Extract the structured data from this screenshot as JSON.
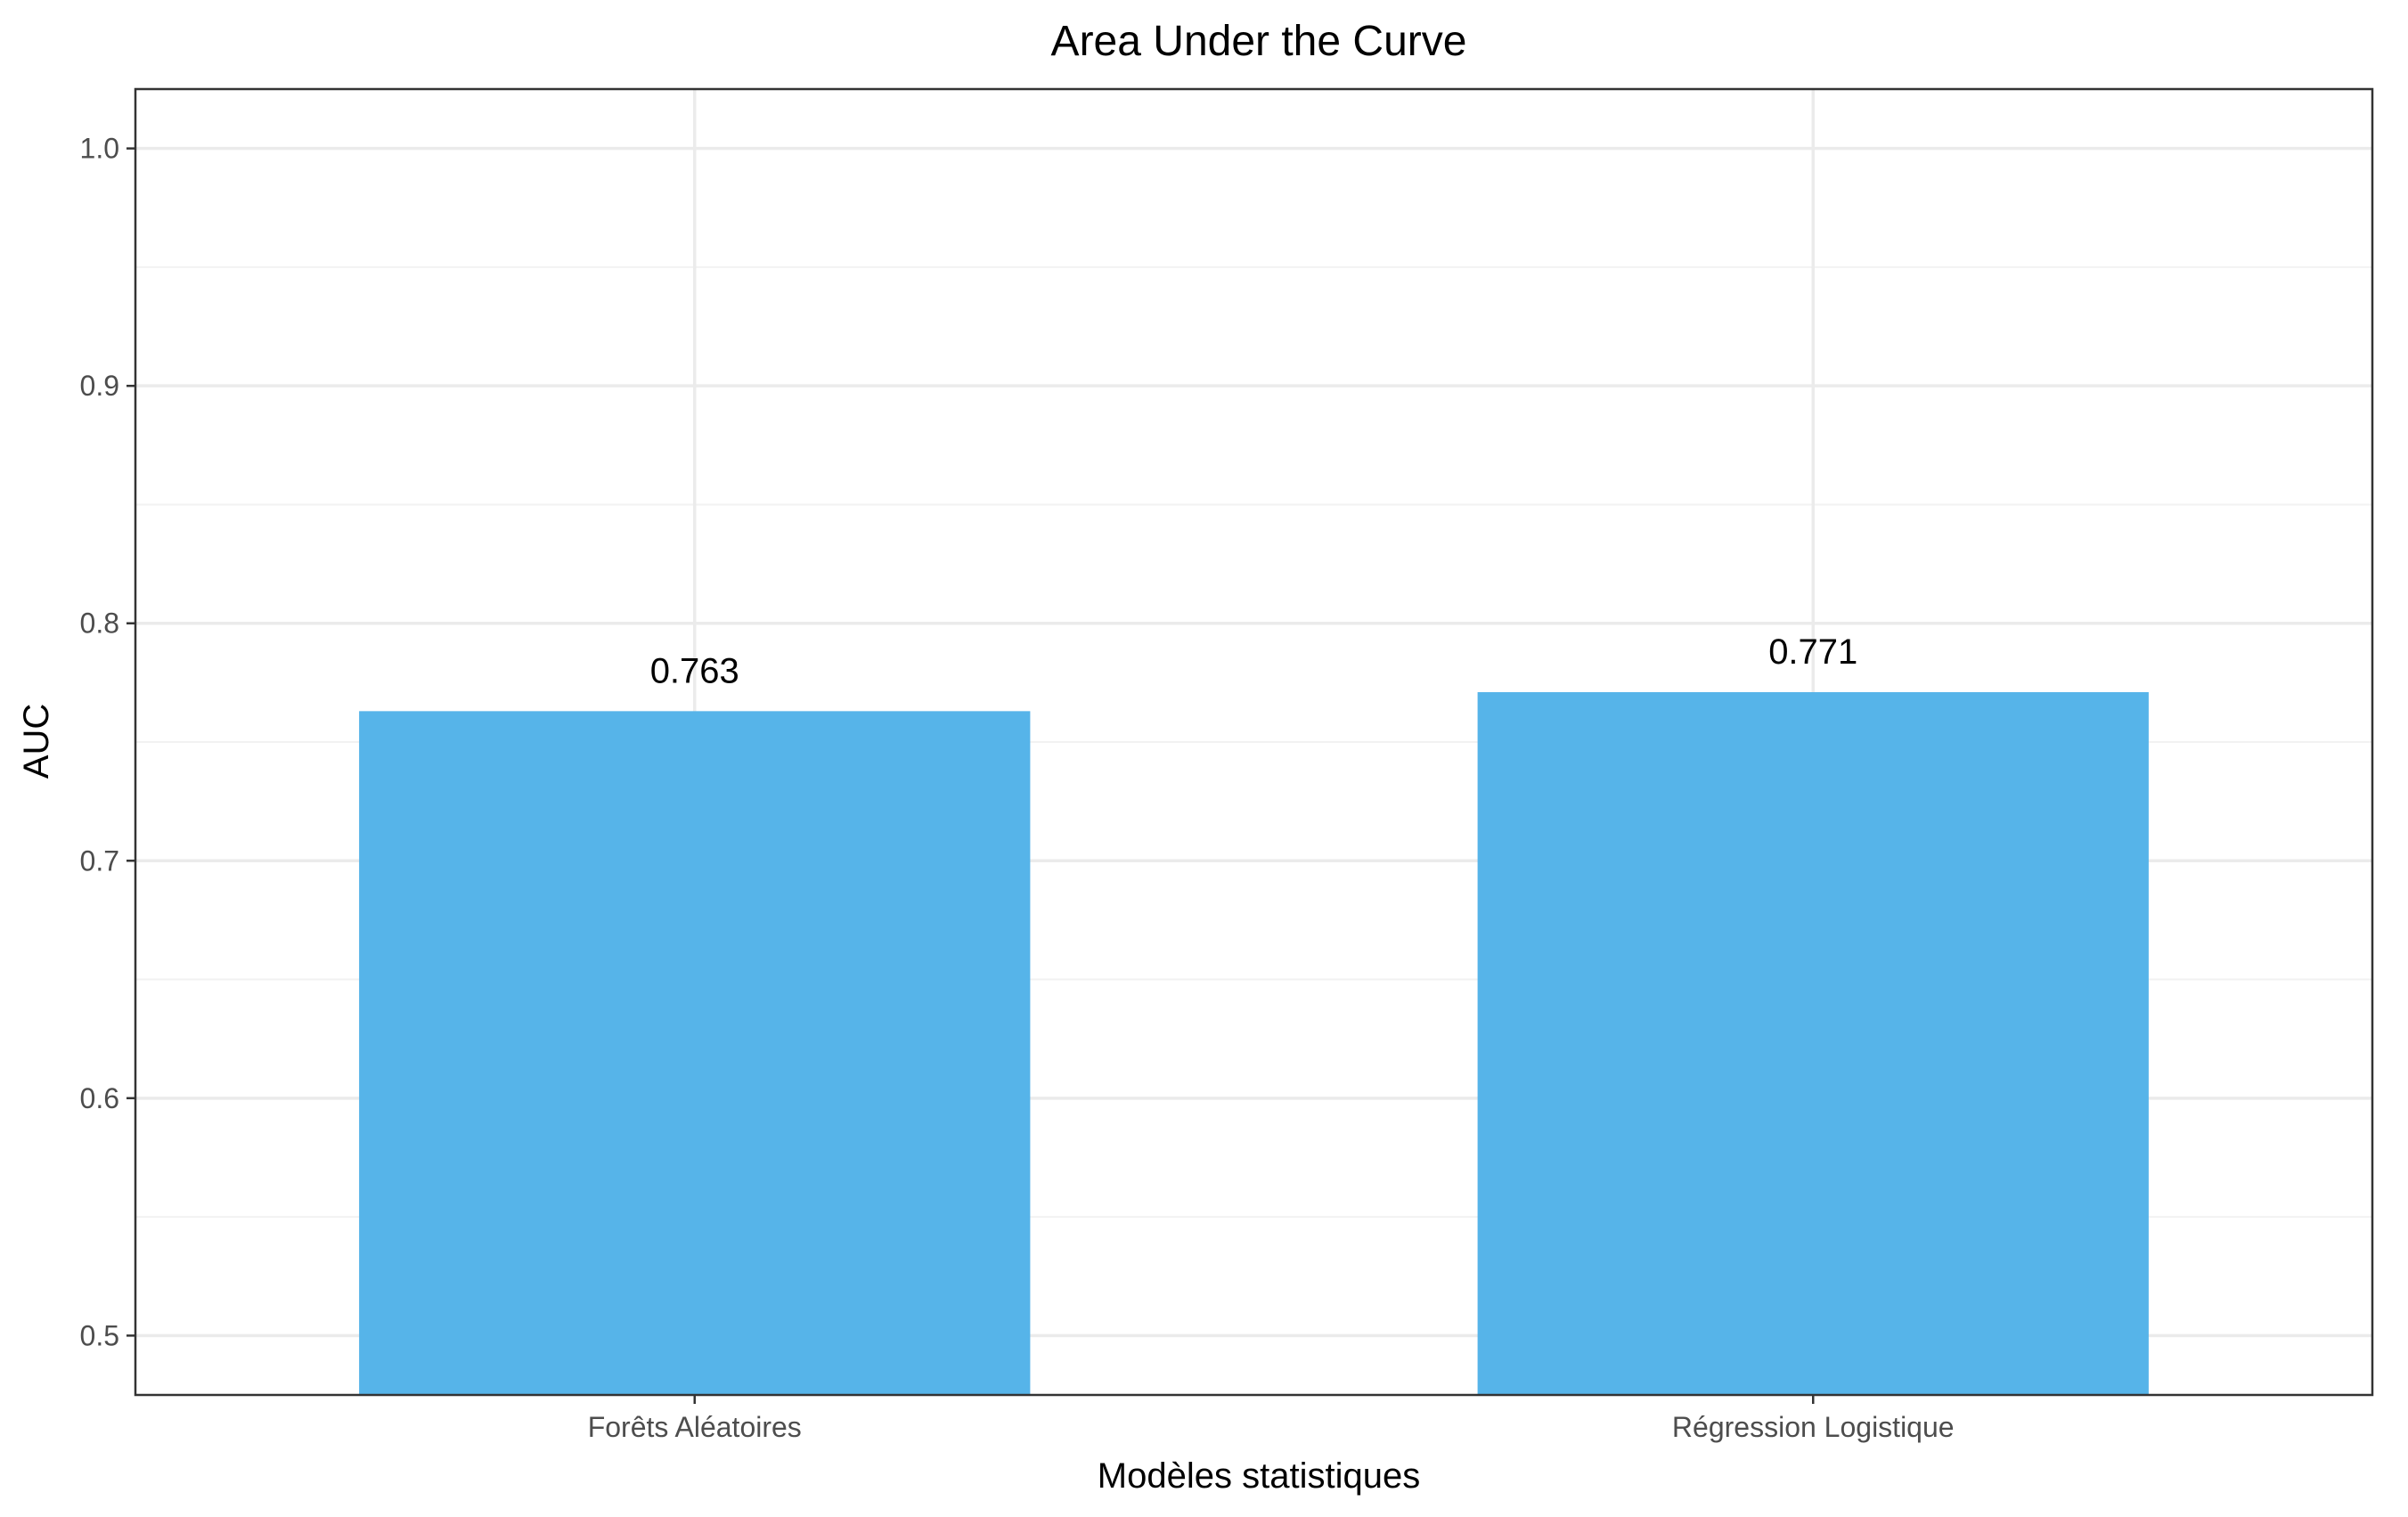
{
  "chart_data": {
    "type": "bar",
    "title": "Area Under the Curve",
    "xlabel": "Modèles statistiques",
    "ylabel": "AUC",
    "categories": [
      "Forêts Aléatoires",
      "Régression Logistique"
    ],
    "values": [
      0.763,
      0.771
    ],
    "data_labels": [
      "0.763",
      "0.771"
    ],
    "ylim": [
      0.475,
      1.025
    ],
    "yticks": [
      0.5,
      0.6,
      0.7,
      0.8,
      0.9,
      1.0
    ],
    "ytick_labels": [
      "0.5",
      "0.6",
      "0.7",
      "0.8",
      "0.9",
      "1.0"
    ],
    "grid": true,
    "bar_color": "#56B4E9"
  }
}
